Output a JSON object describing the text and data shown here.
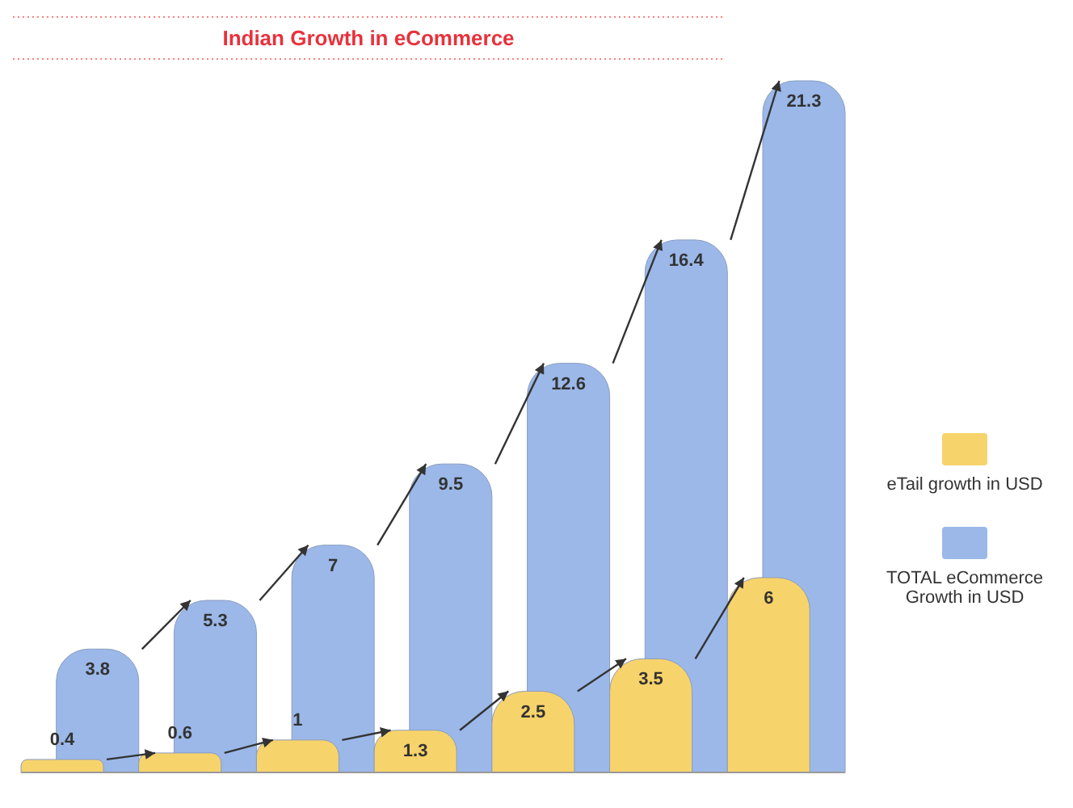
{
  "chart_data": {
    "type": "bar",
    "title": "Indian Growth in eCommerce",
    "categories": [
      null,
      null,
      null,
      null,
      null,
      null,
      null
    ],
    "series": [
      {
        "name": "eTail growth in USD",
        "color": "#f7d36b",
        "values": [
          0.4,
          0.6,
          1,
          1.3,
          2.5,
          3.5,
          6
        ],
        "value_labels": [
          "0.4",
          "0.6",
          "1",
          "1.3",
          "2.5",
          "3.5",
          "6"
        ]
      },
      {
        "name": "TOTAL eCommerce Growth in USD",
        "color": "#9bb8e8",
        "values": [
          3.8,
          5.3,
          7,
          9.5,
          12.6,
          16.4,
          21.3
        ],
        "value_labels": [
          "3.8",
          "5.3",
          "7",
          "9.5",
          "12.6",
          "16.4",
          "21.3"
        ]
      }
    ],
    "legend": "right",
    "tick_labels": false
  }
}
